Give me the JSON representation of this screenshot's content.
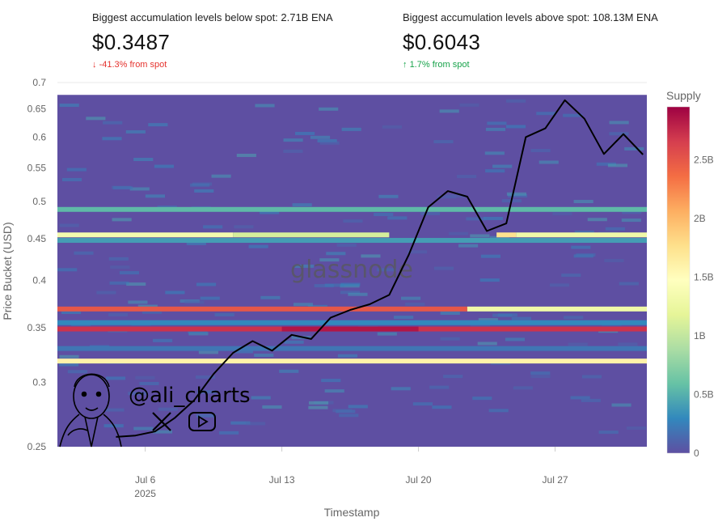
{
  "stats": {
    "below": {
      "label": "Biggest accumulation levels below spot: 2.71B ENA",
      "price": "$0.3487",
      "delta": "-41.3% from spot"
    },
    "above": {
      "label": "Biggest accumulation levels above spot: 108.13M ENA",
      "price": "$0.6043",
      "delta": "1.7% from spot"
    }
  },
  "colors": {
    "down": "#e5322d",
    "up": "#17a34a",
    "background_cell": "#5e4fa2",
    "price_line": "#000000"
  },
  "watermark": "glassnode",
  "author": {
    "handle": "@ali_charts",
    "icons": [
      "portrait-icon",
      "x-logo-icon",
      "youtube-icon"
    ]
  },
  "chart_data": {
    "type": "heatmap",
    "xlabel": "Timestamp",
    "ylabel": "Price Bucket (USD)",
    "colorbar": {
      "title": "Supply",
      "range": [
        0,
        2.95
      ],
      "ticks": [
        "0",
        "0.5B",
        "1B",
        "1.5B",
        "2B",
        "2.5B"
      ],
      "tick_values": [
        0,
        0.5,
        1,
        1.5,
        2,
        2.5
      ]
    },
    "x_range": [
      1.5,
      31.7
    ],
    "x_ticks": [
      {
        "value": 6,
        "label": "Jul 6",
        "sub": "2025"
      },
      {
        "value": 13,
        "label": "Jul 13"
      },
      {
        "value": 20,
        "label": "Jul 20"
      },
      {
        "value": 27,
        "label": "Jul 27"
      }
    ],
    "y_scale": "log",
    "y_range": [
      0.25,
      0.7
    ],
    "y_ticks": [
      0.25,
      0.3,
      0.35,
      0.4,
      0.45,
      0.5,
      0.55,
      0.6,
      0.65,
      0.7
    ],
    "heatmap_y_top": 0.676,
    "bands": [
      {
        "price": 0.3487,
        "value": 2.71,
        "from": 1.5,
        "to": 31.7
      },
      {
        "price": 0.3487,
        "value": 2.85,
        "from": 13,
        "to": 20
      },
      {
        "price": 0.3185,
        "value": 1.6,
        "from": 1.5,
        "to": 31.7
      },
      {
        "price": 0.369,
        "value": 2.5,
        "from": 1.5,
        "to": 22.5
      },
      {
        "price": 0.369,
        "value": 1.3,
        "from": 22.5,
        "to": 31.7
      },
      {
        "price": 0.455,
        "value": 1.35,
        "from": 1.5,
        "to": 10.5
      },
      {
        "price": 0.455,
        "value": 1.1,
        "from": 10.5,
        "to": 18.5
      },
      {
        "price": 0.455,
        "value": 1.75,
        "from": 24,
        "to": 25
      },
      {
        "price": 0.455,
        "value": 1.3,
        "from": 25,
        "to": 31.7
      },
      {
        "price": 0.448,
        "value": 0.4,
        "from": 1.5,
        "to": 31.7
      },
      {
        "price": 0.489,
        "value": 0.55,
        "from": 1.5,
        "to": 31.7
      },
      {
        "price": 0.355,
        "value": 0.3,
        "from": 1.5,
        "to": 31.7
      },
      {
        "price": 0.33,
        "value": 0.2,
        "from": 1.5,
        "to": 31.7
      }
    ],
    "series": [
      {
        "name": "ENA price",
        "x": [
          4.5,
          5.5,
          6.5,
          7.5,
          8.5,
          9.5,
          10.5,
          11.5,
          12.5,
          13.5,
          14.5,
          15.5,
          16.5,
          17.5,
          18.5,
          19.5,
          20.5,
          21.5,
          22.5,
          23.5,
          24.5,
          25.5,
          26.5,
          27.5,
          28.5,
          29.5,
          30.5,
          31.5
        ],
        "values": [
          0.257,
          0.258,
          0.261,
          0.271,
          0.285,
          0.307,
          0.326,
          0.337,
          0.328,
          0.343,
          0.339,
          0.36,
          0.368,
          0.374,
          0.384,
          0.43,
          0.492,
          0.515,
          0.507,
          0.46,
          0.47,
          0.6,
          0.615,
          0.666,
          0.632,
          0.572,
          0.605,
          0.571
        ]
      }
    ]
  }
}
